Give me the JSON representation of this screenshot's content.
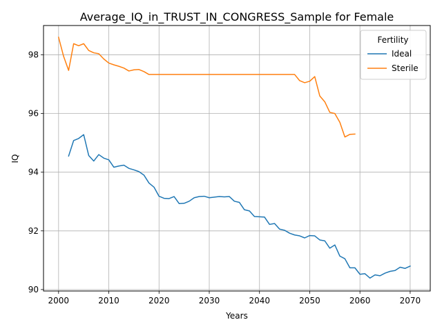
{
  "chart_data": {
    "type": "line",
    "title": "Average_IQ_in_TRUST_IN_CONGRESS_Sample for Female",
    "xlabel": "Years",
    "ylabel": "IQ",
    "xlim": [
      1997,
      2074
    ],
    "ylim": [
      89.95,
      99.0
    ],
    "xticks": [
      2000,
      2010,
      2020,
      2030,
      2040,
      2050,
      2060,
      2070
    ],
    "yticks": [
      90,
      92,
      94,
      96,
      98
    ],
    "grid": true,
    "legend": {
      "title": "Fertility",
      "placement": "top-right"
    },
    "series": [
      {
        "name": "Ideal",
        "color": "#1f77b4",
        "x": [
          2002,
          2003,
          2004,
          2005,
          2006,
          2007,
          2008,
          2009,
          2010,
          2011,
          2012,
          2013,
          2014,
          2015,
          2016,
          2017,
          2018,
          2019,
          2020,
          2021,
          2022,
          2023,
          2024,
          2025,
          2026,
          2027,
          2028,
          2029,
          2030,
          2031,
          2032,
          2033,
          2034,
          2035,
          2036,
          2037,
          2038,
          2039,
          2040,
          2041,
          2042,
          2043,
          2044,
          2045,
          2046,
          2047,
          2048,
          2049,
          2050,
          2051,
          2052,
          2053,
          2054,
          2055,
          2056,
          2057,
          2058,
          2059,
          2060,
          2061,
          2062,
          2063,
          2064,
          2065,
          2066,
          2067,
          2068,
          2069,
          2070
        ],
        "y": [
          94.55,
          95.08,
          95.15,
          95.28,
          94.57,
          94.38,
          94.6,
          94.48,
          94.42,
          94.17,
          94.21,
          94.24,
          94.13,
          94.08,
          94.02,
          93.9,
          93.63,
          93.49,
          93.18,
          93.11,
          93.1,
          93.17,
          92.93,
          92.94,
          93.01,
          93.13,
          93.17,
          93.18,
          93.13,
          93.15,
          93.17,
          93.16,
          93.17,
          93.01,
          92.97,
          92.72,
          92.68,
          92.49,
          92.48,
          92.47,
          92.22,
          92.25,
          92.06,
          92.02,
          91.92,
          91.86,
          91.83,
          91.76,
          91.84,
          91.83,
          91.69,
          91.66,
          91.41,
          91.52,
          91.14,
          91.05,
          90.74,
          90.74,
          90.52,
          90.54,
          90.39,
          90.5,
          90.47,
          90.56,
          90.62,
          90.65,
          90.76,
          90.72,
          90.8
        ]
      },
      {
        "name": "Sterile",
        "color": "#ff7f0e",
        "x": [
          2000,
          2001,
          2002,
          2003,
          2004,
          2005,
          2006,
          2007,
          2008,
          2009,
          2010,
          2011,
          2012,
          2013,
          2014,
          2015,
          2016,
          2017,
          2018,
          2019,
          2020,
          2021,
          2022,
          2023,
          2024,
          2025,
          2026,
          2027,
          2028,
          2029,
          2030,
          2031,
          2032,
          2033,
          2034,
          2035,
          2036,
          2037,
          2038,
          2039,
          2040,
          2041,
          2042,
          2043,
          2044,
          2045,
          2046,
          2047,
          2048,
          2049,
          2050,
          2051,
          2052,
          2053,
          2054,
          2055,
          2056,
          2057,
          2058,
          2059
        ],
        "y": [
          98.6,
          97.95,
          97.47,
          98.38,
          98.31,
          98.38,
          98.15,
          98.07,
          98.04,
          97.86,
          97.72,
          97.66,
          97.61,
          97.55,
          97.45,
          97.49,
          97.5,
          97.43,
          97.33,
          97.33,
          97.33,
          97.33,
          97.33,
          97.33,
          97.33,
          97.33,
          97.33,
          97.33,
          97.33,
          97.33,
          97.33,
          97.33,
          97.33,
          97.33,
          97.33,
          97.33,
          97.33,
          97.33,
          97.33,
          97.33,
          97.33,
          97.33,
          97.33,
          97.33,
          97.33,
          97.33,
          97.33,
          97.33,
          97.12,
          97.05,
          97.1,
          97.26,
          96.6,
          96.4,
          96.04,
          96.0,
          95.7,
          95.2,
          95.29,
          95.3
        ]
      }
    ]
  }
}
